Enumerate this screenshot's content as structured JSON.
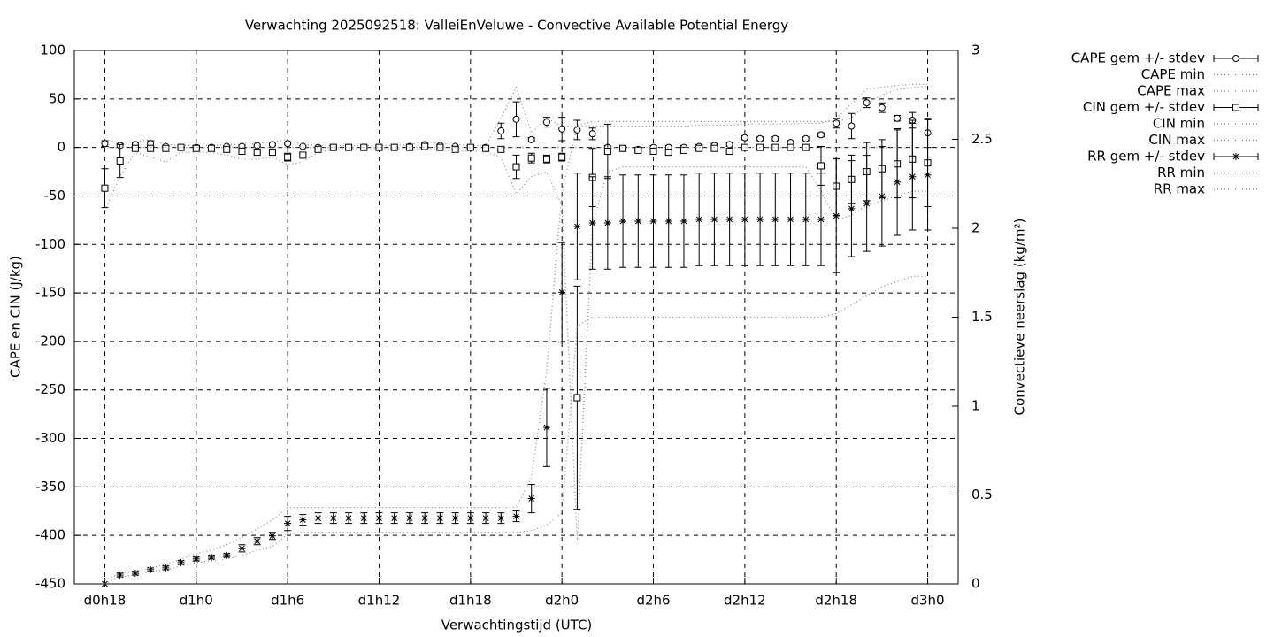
{
  "chart_data": {
    "type": "errorbar",
    "title": "Verwachting 2025092518: ValleiEnVeluwe - Convective Available Potential Energy",
    "xlabel": "Verwachtingstijd (UTC)",
    "ylabel": "CAPE en CIN (J/kg)",
    "y2label": "Convectieve neerslag (kg/m²)",
    "x": [
      18,
      19,
      20,
      21,
      22,
      23,
      24,
      25,
      26,
      27,
      28,
      29,
      30,
      31,
      32,
      33,
      34,
      35,
      36,
      37,
      38,
      39,
      40,
      41,
      42,
      43,
      44,
      45,
      46,
      47,
      48,
      49,
      50,
      51,
      52,
      53,
      54,
      55,
      56,
      57,
      58,
      59,
      60,
      61,
      62,
      63,
      64,
      65,
      66,
      67,
      68,
      69,
      70,
      71,
      72
    ],
    "xlim": [
      16,
      74
    ],
    "xticks": [
      {
        "value": 18,
        "label": "d0h18"
      },
      {
        "value": 24,
        "label": "d1h0"
      },
      {
        "value": 30,
        "label": "d1h6"
      },
      {
        "value": 36,
        "label": "d1h12"
      },
      {
        "value": 42,
        "label": "d1h18"
      },
      {
        "value": 48,
        "label": "d2h0"
      },
      {
        "value": 54,
        "label": "d2h6"
      },
      {
        "value": 60,
        "label": "d2h12"
      },
      {
        "value": 66,
        "label": "d2h18"
      },
      {
        "value": 72,
        "label": "d3h0"
      }
    ],
    "ylim": [
      -450,
      100
    ],
    "yticks": [
      100,
      50,
      0,
      -50,
      -100,
      -150,
      -200,
      -250,
      -300,
      -350,
      -400,
      -450
    ],
    "y2lim": [
      0,
      3
    ],
    "y2ticks": [
      0,
      0.5,
      1,
      1.5,
      2,
      2.5,
      3
    ],
    "grid": true,
    "legend": "outside-right-top",
    "color": "#000000",
    "series": [
      {
        "name": "CAPE gem +/- stdev",
        "marker": "circle",
        "values": [
          4,
          2,
          3,
          4,
          1,
          0,
          0,
          0,
          1,
          1,
          2,
          3,
          4,
          1,
          0,
          0,
          0,
          0,
          0,
          0,
          1,
          3,
          2,
          1,
          0,
          0,
          17,
          29,
          8,
          26,
          19,
          18,
          14,
          0,
          -1,
          -2,
          0,
          0,
          0,
          1,
          2,
          3,
          10,
          9,
          9,
          5,
          9,
          13,
          25,
          22,
          46,
          41,
          30,
          28,
          15
        ],
        "errors": [
          3,
          2,
          2,
          3,
          1,
          1,
          1,
          1,
          1,
          1,
          1,
          1,
          1,
          1,
          1,
          1,
          1,
          1,
          1,
          1,
          1,
          1,
          1,
          1,
          1,
          1,
          8,
          18,
          2,
          5,
          12,
          10,
          6,
          2,
          2,
          2,
          2,
          2,
          2,
          2,
          2,
          2,
          2,
          2,
          2,
          2,
          2,
          2,
          5,
          13,
          5,
          5,
          3,
          8,
          15
        ]
      },
      {
        "name": "CAPE min",
        "values": [
          0,
          0,
          0,
          0,
          0,
          0,
          0,
          0,
          0,
          0,
          0,
          0,
          0,
          0,
          0,
          0,
          0,
          0,
          0,
          0,
          0,
          0,
          0,
          0,
          0,
          0,
          0,
          0,
          0,
          0,
          0,
          0,
          0,
          0,
          0,
          0,
          0,
          0,
          0,
          0,
          0,
          0,
          0,
          0,
          0,
          0,
          0,
          0,
          0,
          0,
          0,
          0,
          0,
          0,
          0
        ]
      },
      {
        "name": "CAPE max",
        "values": [
          8,
          5,
          6,
          8,
          3,
          2,
          2,
          2,
          3,
          3,
          4,
          6,
          8,
          3,
          2,
          2,
          2,
          2,
          2,
          2,
          3,
          6,
          4,
          3,
          2,
          2,
          30,
          62,
          15,
          30,
          22,
          22,
          22,
          22,
          22,
          22,
          22,
          22,
          22,
          23,
          23,
          23,
          24,
          24,
          24,
          24,
          25,
          25,
          30,
          45,
          60,
          62,
          64,
          65,
          65
        ]
      },
      {
        "name": "CIN gem +/- stdev",
        "marker": "square",
        "values": [
          -42,
          -14,
          -1,
          -1,
          -1,
          0,
          -1,
          -1,
          -2,
          -4,
          -5,
          -5,
          -10,
          -8,
          -2,
          0,
          0,
          0,
          0,
          0,
          0,
          1,
          0,
          -2,
          0,
          -1,
          -2,
          -20,
          -11,
          -12,
          -10,
          -258,
          -31,
          -4,
          -1,
          -3,
          -4,
          -5,
          -3,
          -1,
          -1,
          -4,
          0,
          0,
          0,
          0,
          0,
          -19,
          -40,
          -33,
          -25,
          -22,
          -17,
          -12,
          -16
        ],
        "errors": [
          20,
          17,
          2,
          2,
          2,
          2,
          2,
          2,
          2,
          2,
          2,
          2,
          4,
          2,
          2,
          2,
          2,
          2,
          2,
          2,
          2,
          2,
          2,
          2,
          2,
          2,
          2,
          12,
          5,
          4,
          4,
          115,
          30,
          28,
          2,
          2,
          2,
          2,
          2,
          2,
          2,
          2,
          2,
          2,
          2,
          2,
          2,
          20,
          30,
          25,
          30,
          30,
          35,
          40,
          45
        ]
      },
      {
        "name": "CIN min",
        "values": [
          -65,
          -30,
          -5,
          -10,
          -15,
          -5,
          -5,
          -5,
          -8,
          -12,
          -12,
          -10,
          -18,
          -15,
          -5,
          -2,
          -2,
          -2,
          -2,
          -2,
          -2,
          -2,
          -2,
          -5,
          -3,
          -5,
          -10,
          -48,
          -30,
          -25,
          -60,
          -405,
          -80,
          -25,
          -20,
          -20,
          -20,
          -20,
          -20,
          -20,
          -20,
          -20,
          -20,
          -20,
          -20,
          -20,
          -20,
          -45,
          -75,
          -70,
          -60,
          -55,
          -50,
          -45,
          -45
        ]
      },
      {
        "name": "CIN max",
        "values": [
          0,
          0,
          0,
          0,
          0,
          0,
          0,
          0,
          0,
          0,
          0,
          0,
          0,
          0,
          0,
          0,
          0,
          0,
          0,
          0,
          0,
          0,
          0,
          0,
          0,
          0,
          0,
          0,
          0,
          0,
          0,
          0,
          0,
          0,
          0,
          0,
          0,
          0,
          0,
          0,
          0,
          0,
          0,
          0,
          0,
          0,
          0,
          0,
          0,
          0,
          0,
          0,
          0,
          0,
          0
        ]
      },
      {
        "name": "RR gem +/- stdev",
        "marker": "star",
        "axis": "y2",
        "values": [
          0,
          0.05,
          0.06,
          0.08,
          0.09,
          0.12,
          0.14,
          0.15,
          0.16,
          0.2,
          0.24,
          0.27,
          0.34,
          0.36,
          0.37,
          0.37,
          0.37,
          0.37,
          0.37,
          0.37,
          0.37,
          0.37,
          0.37,
          0.37,
          0.37,
          0.37,
          0.37,
          0.38,
          0.48,
          0.88,
          1.64,
          2.01,
          2.03,
          2.03,
          2.04,
          2.04,
          2.04,
          2.04,
          2.04,
          2.05,
          2.05,
          2.05,
          2.05,
          2.05,
          2.05,
          2.05,
          2.05,
          2.05,
          2.07,
          2.11,
          2.14,
          2.18,
          2.26,
          2.29,
          2.3
        ],
        "errors": [
          0,
          0.01,
          0.01,
          0.01,
          0.01,
          0.01,
          0.01,
          0.01,
          0.01,
          0.02,
          0.02,
          0.02,
          0.04,
          0.03,
          0.03,
          0.03,
          0.03,
          0.03,
          0.03,
          0.03,
          0.03,
          0.03,
          0.03,
          0.03,
          0.03,
          0.03,
          0.03,
          0.03,
          0.08,
          0.22,
          0.28,
          0.3,
          0.26,
          0.26,
          0.26,
          0.26,
          0.26,
          0.26,
          0.26,
          0.26,
          0.26,
          0.26,
          0.26,
          0.26,
          0.26,
          0.26,
          0.26,
          0.26,
          0.32,
          0.27,
          0.27,
          0.28,
          0.3,
          0.3,
          0.31
        ]
      },
      {
        "name": "RR min",
        "axis": "y2",
        "values": [
          0,
          0.04,
          0.05,
          0.07,
          0.08,
          0.1,
          0.12,
          0.13,
          0.14,
          0.16,
          0.19,
          0.21,
          0.28,
          0.29,
          0.29,
          0.29,
          0.29,
          0.29,
          0.29,
          0.29,
          0.29,
          0.29,
          0.29,
          0.29,
          0.29,
          0.29,
          0.29,
          0.29,
          0.3,
          0.33,
          0.4,
          1.45,
          1.5,
          1.5,
          1.5,
          1.5,
          1.5,
          1.5,
          1.5,
          1.5,
          1.5,
          1.5,
          1.5,
          1.5,
          1.5,
          1.5,
          1.5,
          1.5,
          1.52,
          1.57,
          1.62,
          1.67,
          1.7,
          1.73,
          1.73
        ]
      },
      {
        "name": "RR max",
        "axis": "y2",
        "values": [
          0.02,
          0.06,
          0.07,
          0.09,
          0.11,
          0.14,
          0.17,
          0.19,
          0.22,
          0.26,
          0.31,
          0.36,
          0.43,
          0.43,
          0.43,
          0.43,
          0.43,
          0.43,
          0.43,
          0.43,
          0.43,
          0.43,
          0.43,
          0.43,
          0.43,
          0.43,
          0.43,
          0.43,
          0.6,
          1.2,
          2.2,
          2.58,
          2.6,
          2.6,
          2.6,
          2.6,
          2.6,
          2.6,
          2.6,
          2.6,
          2.6,
          2.6,
          2.6,
          2.6,
          2.6,
          2.6,
          2.6,
          2.6,
          2.6,
          2.62,
          2.7,
          2.75,
          2.78,
          2.79,
          2.8
        ]
      }
    ]
  }
}
